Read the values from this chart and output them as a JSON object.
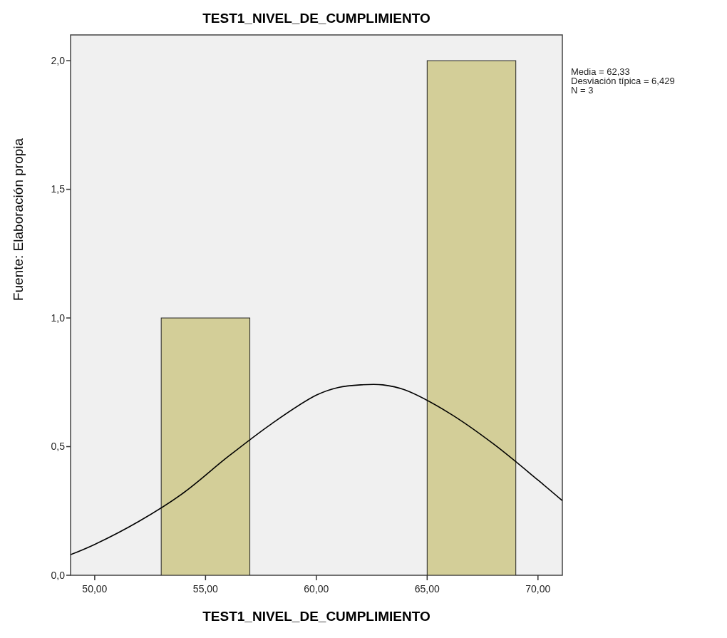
{
  "chart_data": {
    "type": "histogram",
    "title": "TEST1_NIVEL_DE_CUMPLIMIENTO",
    "xlabel": "TEST1_NIVEL_DE_CUMPLIMIENTO",
    "annotations": [
      "Media = 62,33",
      "Desviación típica = 6,429",
      "N = 3",
      "Fuente: Elaboración propia"
    ],
    "series": [
      {
        "bins": [
          53,
          57,
          61,
          65,
          69
        ],
        "values": [
          1,
          0,
          0,
          2
        ],
        "color": "#d3ce98"
      },
      {
        "type": "line",
        "color": "#000000",
        "x": [
          48.91,
          50,
          52,
          54,
          56,
          58,
          60,
          61,
          62,
          63,
          64,
          66,
          68,
          70,
          71.1
        ],
        "values": [
          0.08,
          0.12,
          0.21,
          0.32,
          0.46,
          0.59,
          0.7,
          0.73,
          0.74,
          0.74,
          0.72,
          0.63,
          0.51,
          0.37,
          0.29
        ]
      }
    ],
    "xlim": [
      48.91,
      71.1
    ],
    "ylim": [
      0,
      2.1
    ],
    "xticks": [
      {
        "value": 50,
        "label": "50,00"
      },
      {
        "value": 55,
        "label": "55,00"
      },
      {
        "value": 60,
        "label": "60,00"
      },
      {
        "value": 65,
        "label": "65,00"
      },
      {
        "value": 70,
        "label": "70,00"
      }
    ],
    "yticks": [
      {
        "value": 0,
        "label": "0,0"
      },
      {
        "value": 0.5,
        "label": "0,5"
      },
      {
        "value": 1,
        "label": "1,0"
      },
      {
        "value": 1.5,
        "label": "1,5"
      },
      {
        "value": 2,
        "label": "2,0"
      }
    ],
    "grid": false
  }
}
